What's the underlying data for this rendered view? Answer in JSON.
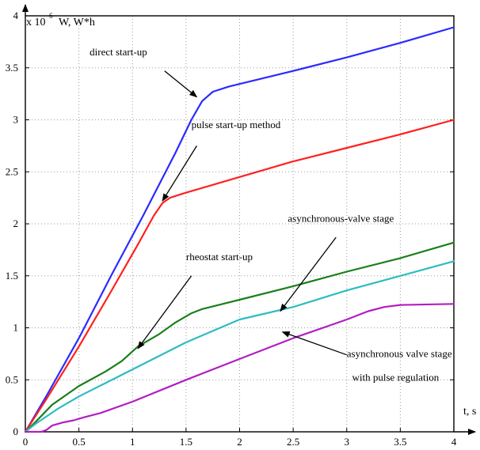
{
  "chart_data": {
    "type": "line",
    "axis": {
      "x_label": "t, s",
      "y_label": "W, W*h",
      "y_multiplier": "x 10",
      "y_exponent": "6",
      "x_ticks": [
        {
          "value": 0,
          "label": "0"
        },
        {
          "value": 0.5,
          "label": "0.5"
        },
        {
          "value": 1,
          "label": "1"
        },
        {
          "value": 1.5,
          "label": "1.5"
        },
        {
          "value": 2,
          "label": "2"
        },
        {
          "value": 2.5,
          "label": "2.5"
        },
        {
          "value": 3,
          "label": "3"
        },
        {
          "value": 3.5,
          "label": "3.5"
        },
        {
          "value": 4,
          "label": "4"
        }
      ],
      "y_ticks": [
        {
          "value": 0,
          "label": "0"
        },
        {
          "value": 0.5,
          "label": "0.5"
        },
        {
          "value": 1,
          "label": "1"
        },
        {
          "value": 1.5,
          "label": "1.5"
        },
        {
          "value": 2,
          "label": "2"
        },
        {
          "value": 2.5,
          "label": "2.5"
        },
        {
          "value": 3,
          "label": "3"
        },
        {
          "value": 3.5,
          "label": "3.5"
        },
        {
          "value": 4,
          "label": "4"
        }
      ]
    },
    "xlim": [
      0,
      4
    ],
    "ylim": [
      0,
      4
    ],
    "grid": true,
    "series": [
      {
        "name": "direct start-up",
        "color": "#2b2bff",
        "points": [
          [
            0,
            0
          ],
          [
            0.2,
            0.35
          ],
          [
            0.5,
            0.9
          ],
          [
            0.8,
            1.5
          ],
          [
            1.1,
            2.08
          ],
          [
            1.4,
            2.68
          ],
          [
            1.55,
            3.0
          ],
          [
            1.65,
            3.18
          ],
          [
            1.75,
            3.27
          ],
          [
            1.9,
            3.32
          ],
          [
            2.5,
            3.47
          ],
          [
            3.0,
            3.6
          ],
          [
            3.5,
            3.74
          ],
          [
            4.0,
            3.89
          ]
        ]
      },
      {
        "name": "pulse start-up method",
        "color": "#ff2020",
        "points": [
          [
            0,
            0
          ],
          [
            0.2,
            0.32
          ],
          [
            0.5,
            0.82
          ],
          [
            0.8,
            1.35
          ],
          [
            1.05,
            1.8
          ],
          [
            1.2,
            2.08
          ],
          [
            1.28,
            2.2
          ],
          [
            1.35,
            2.25
          ],
          [
            1.5,
            2.3
          ],
          [
            2.0,
            2.45
          ],
          [
            2.5,
            2.6
          ],
          [
            3.0,
            2.73
          ],
          [
            3.5,
            2.86
          ],
          [
            4.0,
            3.0
          ]
        ]
      },
      {
        "name": "rheostat start-up",
        "color": "#1a7f1a",
        "points": [
          [
            0,
            0
          ],
          [
            0.1,
            0.1
          ],
          [
            0.25,
            0.26
          ],
          [
            0.5,
            0.44
          ],
          [
            0.75,
            0.58
          ],
          [
            0.9,
            0.68
          ],
          [
            1.05,
            0.82
          ],
          [
            1.25,
            0.94
          ],
          [
            1.4,
            1.05
          ],
          [
            1.55,
            1.14
          ],
          [
            1.65,
            1.18
          ],
          [
            2.0,
            1.27
          ],
          [
            2.5,
            1.4
          ],
          [
            3.0,
            1.54
          ],
          [
            3.5,
            1.67
          ],
          [
            4.0,
            1.82
          ]
        ]
      },
      {
        "name": "asynchronous-valve stage",
        "color": "#2dbcc0",
        "points": [
          [
            0,
            0
          ],
          [
            0.1,
            0.08
          ],
          [
            0.3,
            0.22
          ],
          [
            0.5,
            0.34
          ],
          [
            1.0,
            0.6
          ],
          [
            1.5,
            0.86
          ],
          [
            2.0,
            1.08
          ],
          [
            2.5,
            1.2
          ],
          [
            3.0,
            1.36
          ],
          [
            3.5,
            1.5
          ],
          [
            4.0,
            1.64
          ]
        ]
      },
      {
        "name": "asynchronous valve stage with pulse regulation",
        "color": "#b21ec0",
        "points": [
          [
            0,
            0
          ],
          [
            0.15,
            0
          ],
          [
            0.2,
            0.02
          ],
          [
            0.25,
            0.06
          ],
          [
            0.35,
            0.09
          ],
          [
            0.45,
            0.11
          ],
          [
            0.55,
            0.14
          ],
          [
            0.7,
            0.18
          ],
          [
            1.0,
            0.29
          ],
          [
            1.5,
            0.5
          ],
          [
            2.0,
            0.7
          ],
          [
            2.5,
            0.9
          ],
          [
            3.0,
            1.08
          ],
          [
            3.2,
            1.16
          ],
          [
            3.35,
            1.2
          ],
          [
            3.5,
            1.22
          ],
          [
            4.0,
            1.23
          ]
        ]
      }
    ],
    "annotations": [
      {
        "text": "direct start-up",
        "x": 0.6,
        "y": 3.62,
        "arrow_from": [
          1.3,
          3.47
        ],
        "arrow_to": [
          1.6,
          3.22
        ]
      },
      {
        "text": "pulse start-up method",
        "x": 1.55,
        "y": 2.92,
        "arrow_from": [
          1.6,
          2.75
        ],
        "arrow_to": [
          1.28,
          2.22
        ]
      },
      {
        "text": "asynchronous-valve stage",
        "x": 2.45,
        "y": 2.02,
        "arrow_from": [
          2.9,
          1.87
        ],
        "arrow_to": [
          2.38,
          1.16
        ]
      },
      {
        "text": "rheostat start-up",
        "x": 1.5,
        "y": 1.65,
        "arrow_from": [
          1.55,
          1.5
        ],
        "arrow_to": [
          1.05,
          0.8
        ]
      },
      {
        "text": "asynchronous valve stage",
        "x": 3.0,
        "y": 0.72,
        "arrow_from": [
          3.0,
          0.74
        ],
        "arrow_to": [
          2.4,
          0.96
        ]
      },
      {
        "text": "with pulse regulation",
        "x": 3.05,
        "y": 0.49
      }
    ]
  }
}
